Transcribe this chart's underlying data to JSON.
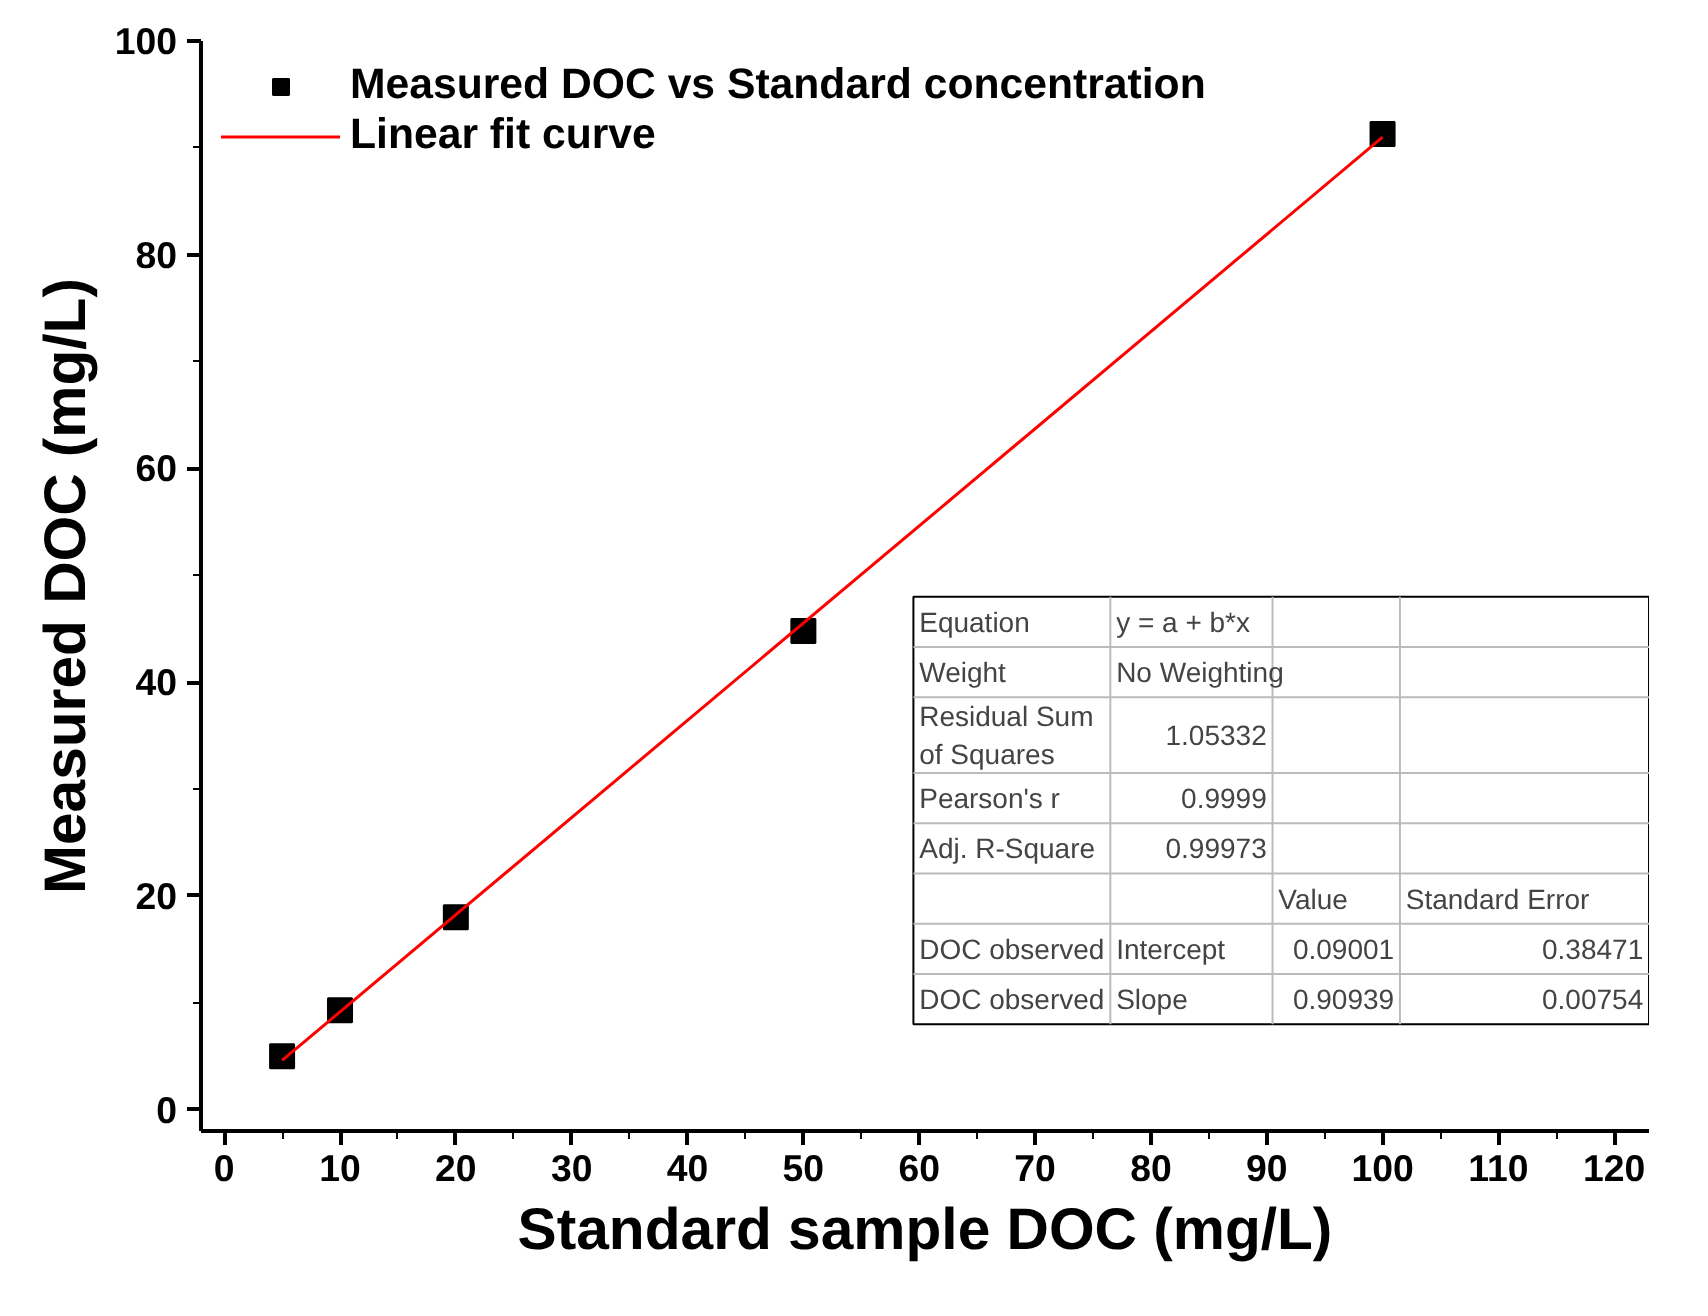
{
  "chart_data": {
    "type": "scatter",
    "xlabel": "Standard sample DOC (mg/L)",
    "ylabel": "Measured DOC (mg/L)",
    "xlim": [
      -2,
      123
    ],
    "ylim": [
      -2,
      100
    ],
    "xticks": [
      0,
      10,
      20,
      30,
      40,
      50,
      60,
      70,
      80,
      90,
      100,
      110,
      120
    ],
    "yticks": [
      0,
      20,
      40,
      60,
      80,
      100
    ],
    "grid": false,
    "legend": "top left",
    "series": [
      {
        "name": "Measured DOC vs Standard concentration",
        "marker": "square",
        "color": "#000000",
        "x": [
          5,
          10,
          20,
          50,
          100
        ],
        "values": [
          5,
          9.3,
          18,
          44.8,
          91.3
        ]
      },
      {
        "name": "Linear fit curve",
        "type": "line",
        "line_style": "solid",
        "color": "#ff0000",
        "x": [
          5,
          100
        ],
        "values": [
          4.6,
          91
        ]
      }
    ],
    "annotations": [
      "Equation",
      "y = a + b*x",
      "Weight",
      "No Weighting",
      "Residual Sum\nof Squares",
      "1.05332",
      "Pearson's r",
      "0.9999",
      "Adj. R-Square",
      "0.99973",
      "Value",
      "Standard Error",
      "DOC observed",
      "Intercept",
      "0.09001",
      "0.38471",
      "DOC observed",
      "Slope",
      "0.90939",
      "0.00754"
    ]
  }
}
